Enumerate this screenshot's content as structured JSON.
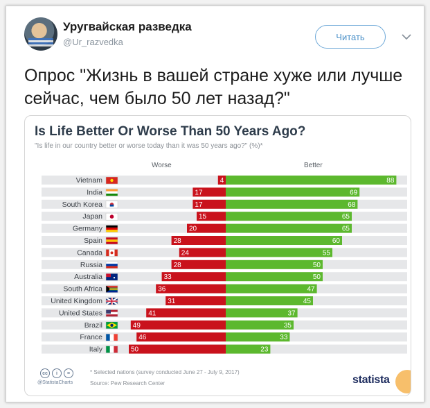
{
  "tweet": {
    "author_name": "Уругвайская разведка",
    "author_handle": "@Ur_razvedka",
    "follow_label": "Читать",
    "text": "Опрос \"Жизнь в вашей стране хуже или лучше сейчас, чем было 50 лет назад?\""
  },
  "chart": {
    "title": "Is Life Better Or Worse Than 50 Years Ago?",
    "subtitle": "\"Is life in our country better or worse today than it was 50 years ago?\" (%)*",
    "col_worse": "Worse",
    "col_better": "Better",
    "footer_note": "* Selected nations (survey conducted June 27 - July 9, 2017)",
    "footer_source": "Source: Pew Research Center",
    "brand": "@StatistaCharts",
    "logo": "statista"
  },
  "colors": {
    "worse": "#c9121c",
    "better": "#5cb82e",
    "row_bg": "#e6e7e9",
    "title": "#2e3c4b"
  },
  "chart_data": {
    "type": "bar",
    "categories": [
      "Vietnam",
      "India",
      "South Korea",
      "Japan",
      "Germany",
      "Spain",
      "Canada",
      "Russia",
      "Australia",
      "South Africa",
      "United Kingdom",
      "United States",
      "Brazil",
      "France",
      "Italy"
    ],
    "series": [
      {
        "name": "Worse",
        "values": [
          4,
          17,
          17,
          15,
          20,
          28,
          24,
          28,
          33,
          36,
          31,
          41,
          49,
          46,
          50
        ]
      },
      {
        "name": "Better",
        "values": [
          88,
          69,
          68,
          65,
          65,
          60,
          55,
          50,
          50,
          47,
          45,
          37,
          35,
          33,
          23
        ]
      }
    ],
    "title": "Is Life Better Or Worse Than 50 Years Ago?",
    "subtitle": "\"Is life in our country better or worse today than it was 50 years ago?\" (%)*",
    "xlabel": "",
    "ylabel": "",
    "legend": "top",
    "grid": false
  }
}
